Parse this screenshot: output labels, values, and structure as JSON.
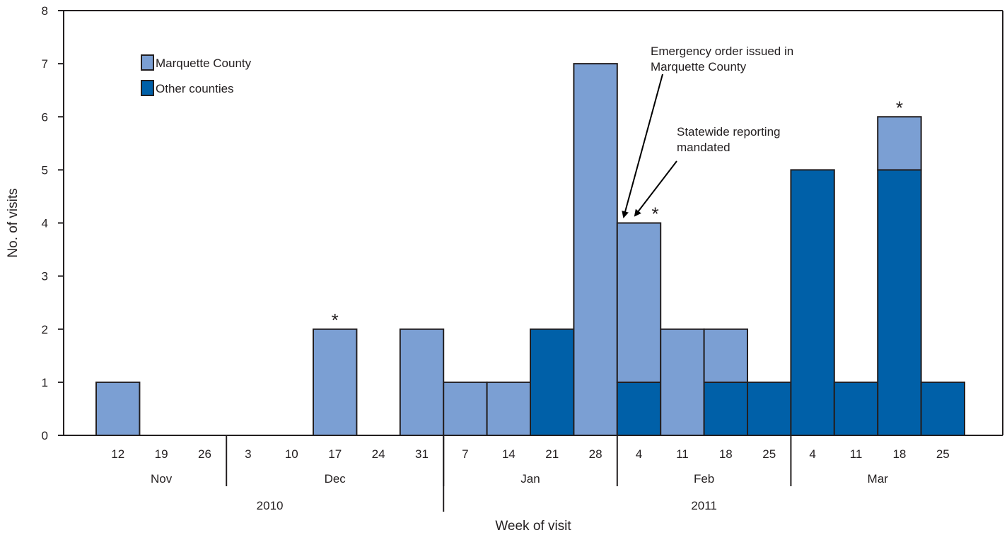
{
  "chart_data": {
    "type": "bar",
    "stacked": true,
    "xlabel": "Week of visit",
    "ylabel": "No. of visits",
    "ylim": [
      0,
      8
    ],
    "yticks": [
      "0",
      "1",
      "2",
      "3",
      "4",
      "5",
      "6",
      "7",
      "8"
    ],
    "categories": [
      "12",
      "19",
      "26",
      "3",
      "10",
      "17",
      "24",
      "31",
      "7",
      "14",
      "21",
      "28",
      "4",
      "11",
      "18",
      "25",
      "4",
      "11",
      "18",
      "25"
    ],
    "series": [
      {
        "name": "Other counties",
        "color": "#0060a8",
        "values": [
          0,
          0,
          0,
          0,
          0,
          0,
          0,
          0,
          0,
          0,
          2,
          0,
          1,
          0,
          1,
          1,
          5,
          1,
          5,
          1
        ]
      },
      {
        "name": "Marquette County",
        "color": "#7b9fd3",
        "values": [
          1,
          0,
          0,
          0,
          0,
          2,
          0,
          2,
          1,
          1,
          0,
          7,
          3,
          2,
          1,
          0,
          0,
          0,
          1,
          0
        ]
      }
    ],
    "legend": {
      "position": "top-left",
      "items": [
        "Marquette County",
        "Other counties"
      ]
    },
    "months": [
      {
        "label": "Nov",
        "from": 0,
        "to": 2
      },
      {
        "label": "Dec",
        "from": 3,
        "to": 7
      },
      {
        "label": "Jan",
        "from": 8,
        "to": 11
      },
      {
        "label": "Feb",
        "from": 12,
        "to": 15
      },
      {
        "label": "Mar",
        "from": 16,
        "to": 19
      }
    ],
    "years": [
      {
        "label": "2010",
        "from": 0,
        "to": 7
      },
      {
        "label": "2011",
        "from": 8,
        "to": 19
      }
    ],
    "asterisk_weeks": [
      5,
      12,
      18
    ],
    "annotations": [
      {
        "lines": [
          "Emergency order issued in",
          "Marquette County"
        ]
      },
      {
        "lines": [
          "Statewide reporting",
          "mandated"
        ]
      }
    ],
    "grid": false
  }
}
